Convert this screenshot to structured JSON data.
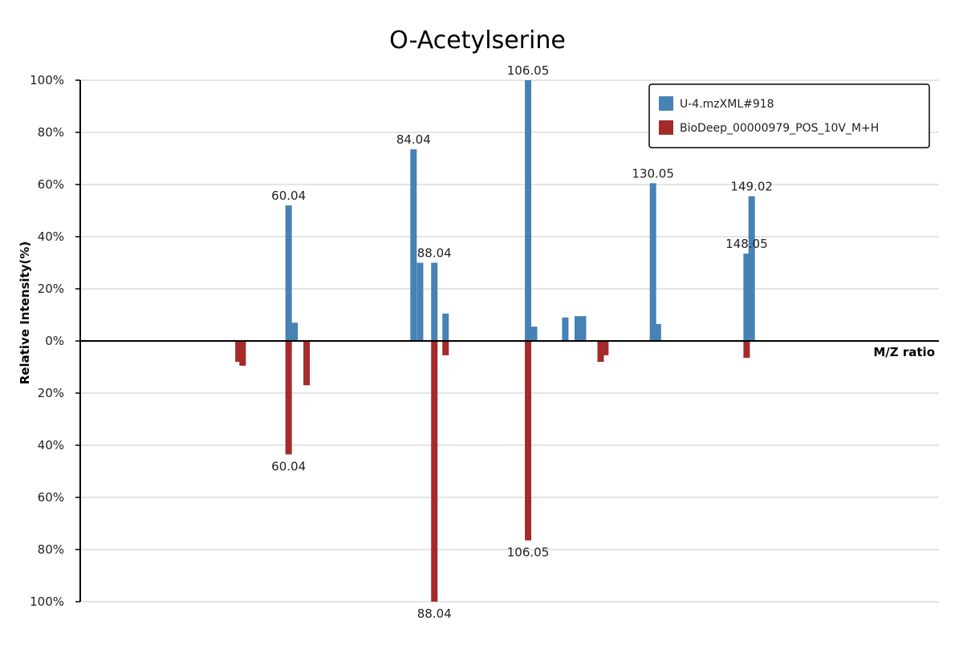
{
  "chart_data": {
    "type": "bar",
    "title": "O-Acetylserine",
    "ylabel": "Relative Intensity(%)",
    "xlabel": "M/Z ratio",
    "xlim": [
      20,
      185
    ],
    "ylim": [
      -100,
      100
    ],
    "y_ticks": [
      {
        "value": 100,
        "label": "100%"
      },
      {
        "value": 80,
        "label": "80%"
      },
      {
        "value": 60,
        "label": "60%"
      },
      {
        "value": 40,
        "label": "40%"
      },
      {
        "value": 20,
        "label": "20%"
      },
      {
        "value": 0,
        "label": "0%"
      },
      {
        "value": -20,
        "label": "20%"
      },
      {
        "value": -40,
        "label": "40%"
      },
      {
        "value": -60,
        "label": "60%"
      },
      {
        "value": -80,
        "label": "80%"
      },
      {
        "value": -100,
        "label": "100%"
      }
    ],
    "grid": true,
    "legend_position": "top-right",
    "series": [
      {
        "name": "U-4.mzXML#918",
        "color": "#4682b4",
        "direction": "up",
        "peaks": [
          {
            "mz": 60.04,
            "intensity": 52,
            "label": "60.04"
          },
          {
            "mz": 61.2,
            "intensity": 7
          },
          {
            "mz": 84.04,
            "intensity": 73.5,
            "label": "84.04"
          },
          {
            "mz": 85.3,
            "intensity": 30
          },
          {
            "mz": 88.04,
            "intensity": 30,
            "label": "88.04"
          },
          {
            "mz": 90.2,
            "intensity": 10.5
          },
          {
            "mz": 106.05,
            "intensity": 100,
            "label": "106.05"
          },
          {
            "mz": 107.2,
            "intensity": 5.5
          },
          {
            "mz": 113.2,
            "intensity": 9
          },
          {
            "mz": 115.6,
            "intensity": 9.5
          },
          {
            "mz": 116.6,
            "intensity": 9.5
          },
          {
            "mz": 130.05,
            "intensity": 60.5,
            "label": "130.05"
          },
          {
            "mz": 131.0,
            "intensity": 6.5
          },
          {
            "mz": 148.05,
            "intensity": 33.5,
            "label": "148.05"
          },
          {
            "mz": 149.02,
            "intensity": 55.5,
            "label": "149.02"
          }
        ]
      },
      {
        "name": "BioDeep_00000979_POS_10V_M+H",
        "color": "#a52a2a",
        "direction": "down",
        "peaks": [
          {
            "mz": 50.4,
            "intensity": 8
          },
          {
            "mz": 51.2,
            "intensity": 9.5
          },
          {
            "mz": 60.04,
            "intensity": 43.5,
            "label": "60.04"
          },
          {
            "mz": 63.5,
            "intensity": 17
          },
          {
            "mz": 88.04,
            "intensity": 100,
            "label": "88.04"
          },
          {
            "mz": 90.2,
            "intensity": 5.5
          },
          {
            "mz": 106.05,
            "intensity": 76.5,
            "label": "106.05"
          },
          {
            "mz": 120.0,
            "intensity": 8
          },
          {
            "mz": 120.9,
            "intensity": 5.5
          },
          {
            "mz": 148.05,
            "intensity": 6.5
          }
        ]
      }
    ]
  }
}
